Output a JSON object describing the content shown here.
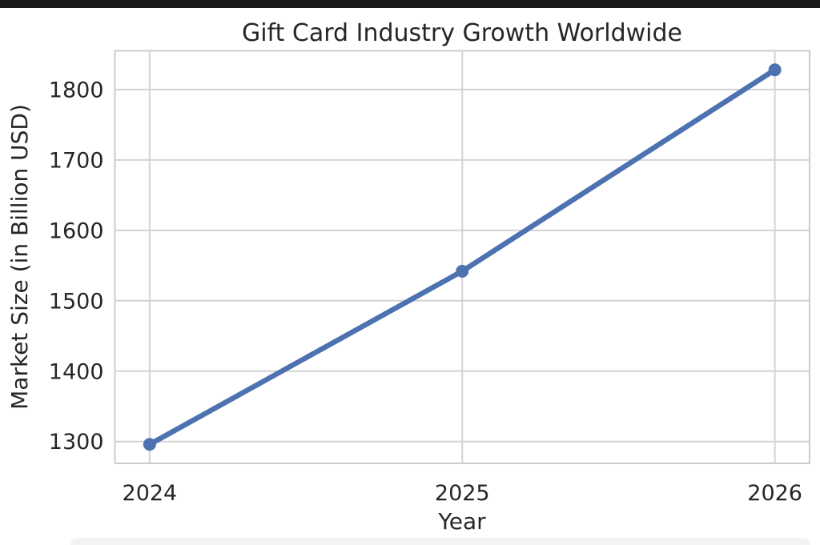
{
  "top_bar": {
    "color": "#1b1b1b"
  },
  "chart_data": {
    "type": "line",
    "title": "Gift Card Industry Growth Worldwide",
    "xlabel": "Year",
    "ylabel": "Market Size (in Billion USD)",
    "x": [
      2024,
      2025,
      2026
    ],
    "series": [
      {
        "name": "Market Size",
        "values": [
          1296,
          1542,
          1828
        ]
      }
    ],
    "xticks": [
      "2024",
      "2025",
      "2026"
    ],
    "yticks": [
      1300,
      1400,
      1500,
      1600,
      1700,
      1800
    ],
    "ylim": [
      1269,
      1855
    ],
    "grid": true,
    "legend": "none",
    "colors": {
      "line": "#4c72b0",
      "marker": "#4c72b0",
      "grid": "#d3d3d3",
      "spine": "#cccccc",
      "text": "#262626",
      "background": "#ffffff"
    }
  }
}
